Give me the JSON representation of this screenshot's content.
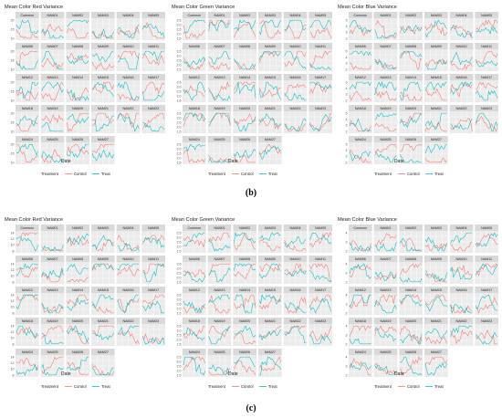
{
  "figure": {
    "captions": [
      "(b)",
      "(c)"
    ]
  },
  "colors": {
    "control": "#F8766D",
    "treat": "#00BFC4",
    "strip": "#d9d9d9",
    "panel_bg": "#ebebeb",
    "grid": "#ffffff"
  },
  "chart_data": [
    {
      "type": "line",
      "figure": "b",
      "title": "Mean Color Red Variance",
      "xlabel": "Date",
      "ylabel": "",
      "panels": [
        "Common",
        "NAM01",
        "NAM02",
        "NAM03",
        "NAM04",
        "NAM05",
        "NAM06",
        "NAM07",
        "NAM08",
        "NAM09",
        "NAM10",
        "NAM11",
        "NAM12",
        "NAM13",
        "NAM14",
        "NAM15",
        "NAM16",
        "NAM17",
        "NAM18",
        "NAM19",
        "NAM20",
        "NAM21",
        "NAM22",
        "NAM23",
        "NAM24",
        "NAM25",
        "NAM26",
        "NAM27"
      ],
      "yticks": [
        "20",
        "15",
        "10"
      ],
      "legend": {
        "title": "Treatment",
        "entries": [
          "Control",
          "Treat"
        ],
        "placement": "bottom"
      },
      "series": [
        {
          "name": "Control"
        },
        {
          "name": "Treat"
        }
      ]
    },
    {
      "type": "line",
      "figure": "b",
      "title": "Mean Color Green Variance",
      "xlabel": "Date",
      "ylabel": "",
      "panels": [
        "Common",
        "NAM01",
        "NAM02",
        "NAM03",
        "NAM04",
        "NAM05",
        "NAM06",
        "NAM07",
        "NAM08",
        "NAM09",
        "NAM10",
        "NAM11",
        "NAM12",
        "NAM13",
        "NAM14",
        "NAM15",
        "NAM16",
        "NAM17",
        "NAM18",
        "NAM19",
        "NAM20",
        "NAM21",
        "NAM22",
        "NAM23",
        "NAM24",
        "NAM25",
        "NAM26",
        "NAM27"
      ],
      "yticks": [
        "3.5",
        "3.0",
        "2.5",
        "2.0",
        "1.5"
      ],
      "legend": {
        "title": "Treatment",
        "entries": [
          "Control",
          "Treat"
        ],
        "placement": "bottom"
      },
      "series": [
        {
          "name": "Control"
        },
        {
          "name": "Treat"
        }
      ]
    },
    {
      "type": "line",
      "figure": "b",
      "title": "Mean Color Blue Variance",
      "xlabel": "Date",
      "ylabel": "",
      "panels": [
        "Common",
        "NAM01",
        "NAM02",
        "NAM03",
        "NAM04",
        "NAM05",
        "NAM06",
        "NAM07",
        "NAM08",
        "NAM09",
        "NAM10",
        "NAM11",
        "NAM12",
        "NAM13",
        "NAM14",
        "NAM15",
        "NAM16",
        "NAM17",
        "NAM18",
        "NAM19",
        "NAM20",
        "NAM21",
        "NAM22",
        "NAM23",
        "NAM24",
        "NAM25",
        "NAM26",
        "NAM27"
      ],
      "yticks": [
        "5",
        "4",
        "3",
        "2"
      ],
      "legend": {
        "title": "Treatment",
        "entries": [
          "Control",
          "Treat"
        ],
        "placement": "bottom"
      },
      "series": [
        {
          "name": "Control"
        },
        {
          "name": "Treat"
        }
      ]
    },
    {
      "type": "line",
      "figure": "c",
      "title": "Mean Color Red Variance",
      "xlabel": "Date",
      "ylabel": "",
      "panels": [
        "Common",
        "NAM01",
        "NAM02",
        "NAM03",
        "NAM04",
        "NAM05",
        "NAM06",
        "NAM07",
        "NAM08",
        "NAM09",
        "NAM10",
        "NAM11",
        "NAM12",
        "NAM13",
        "NAM14",
        "NAM15",
        "NAM16",
        "NAM17",
        "NAM18",
        "NAM19",
        "NAM20",
        "NAM21",
        "NAM22",
        "NAM23",
        "NAM24",
        "NAM25",
        "NAM26",
        "NAM27"
      ],
      "yticks": [
        "14",
        "12",
        "10",
        "8"
      ],
      "legend": {
        "title": "Treatment",
        "entries": [
          "Control",
          "Treat"
        ],
        "placement": "bottom"
      },
      "series": [
        {
          "name": "Control"
        },
        {
          "name": "Treat"
        }
      ]
    },
    {
      "type": "line",
      "figure": "c",
      "title": "Mean Color Green Variance",
      "xlabel": "Date",
      "ylabel": "",
      "panels": [
        "Common",
        "NAM01",
        "NAM02",
        "NAM03",
        "NAM04",
        "NAM05",
        "NAM06",
        "NAM07",
        "NAM08",
        "NAM09",
        "NAM10",
        "NAM11",
        "NAM12",
        "NAM13",
        "NAM14",
        "NAM15",
        "NAM16",
        "NAM17",
        "NAM18",
        "NAM19",
        "NAM20",
        "NAM21",
        "NAM22",
        "NAM23",
        "NAM24",
        "NAM25",
        "NAM26",
        "NAM27"
      ],
      "yticks": [
        "3.5",
        "3.0",
        "2.5",
        "2.0",
        "1.5"
      ],
      "legend": {
        "title": "Treatment",
        "entries": [
          "Control",
          "Treat"
        ],
        "placement": "bottom"
      },
      "series": [
        {
          "name": "Control"
        },
        {
          "name": "Treat"
        }
      ]
    },
    {
      "type": "line",
      "figure": "c",
      "title": "Mean Color Blue Variance",
      "xlabel": "Date",
      "ylabel": "",
      "panels": [
        "Common",
        "NAM01",
        "NAM02",
        "NAM03",
        "NAM04",
        "NAM05",
        "NAM06",
        "NAM07",
        "NAM08",
        "NAM09",
        "NAM10",
        "NAM11",
        "NAM12",
        "NAM13",
        "NAM14",
        "NAM15",
        "NAM16",
        "NAM17",
        "NAM18",
        "NAM19",
        "NAM20",
        "NAM21",
        "NAM22",
        "NAM23",
        "NAM24",
        "NAM25",
        "NAM26",
        "NAM27"
      ],
      "yticks": [
        "4",
        "3",
        "2"
      ],
      "legend": {
        "title": "Treatment",
        "entries": [
          "Control",
          "Treat"
        ],
        "placement": "bottom"
      },
      "series": [
        {
          "name": "Control"
        },
        {
          "name": "Treat"
        }
      ]
    }
  ]
}
